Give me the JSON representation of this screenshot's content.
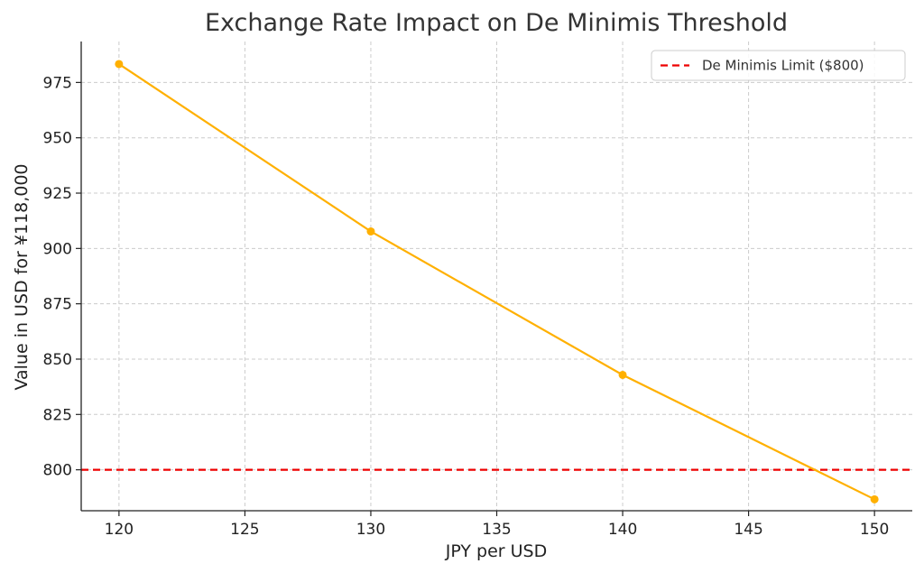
{
  "chart_data": {
    "type": "line",
    "title": "Exchange Rate Impact on De Minimis Threshold",
    "xlabel": "JPY per USD",
    "ylabel": "Value in USD for ¥118,000",
    "xlim": [
      118.5,
      151.5
    ],
    "ylim": [
      781.5,
      993.5
    ],
    "xticks": [
      120,
      125,
      130,
      135,
      140,
      145,
      150
    ],
    "yticks": [
      800,
      825,
      850,
      875,
      900,
      925,
      950,
      975
    ],
    "grid": true,
    "series": [
      {
        "name": "Value in USD",
        "color": "#ffb000",
        "x": [
          120,
          130,
          140,
          150
        ],
        "y": [
          983.33,
          907.69,
          842.86,
          786.67
        ]
      }
    ],
    "reference_lines": [
      {
        "name": "De Minimis Limit ($800)",
        "orientation": "horizontal",
        "value": 800,
        "color": "#ee0000",
        "style": "dashed"
      }
    ],
    "legend": {
      "position": "top-right",
      "entries": [
        "De Minimis Limit ($800)"
      ]
    }
  }
}
